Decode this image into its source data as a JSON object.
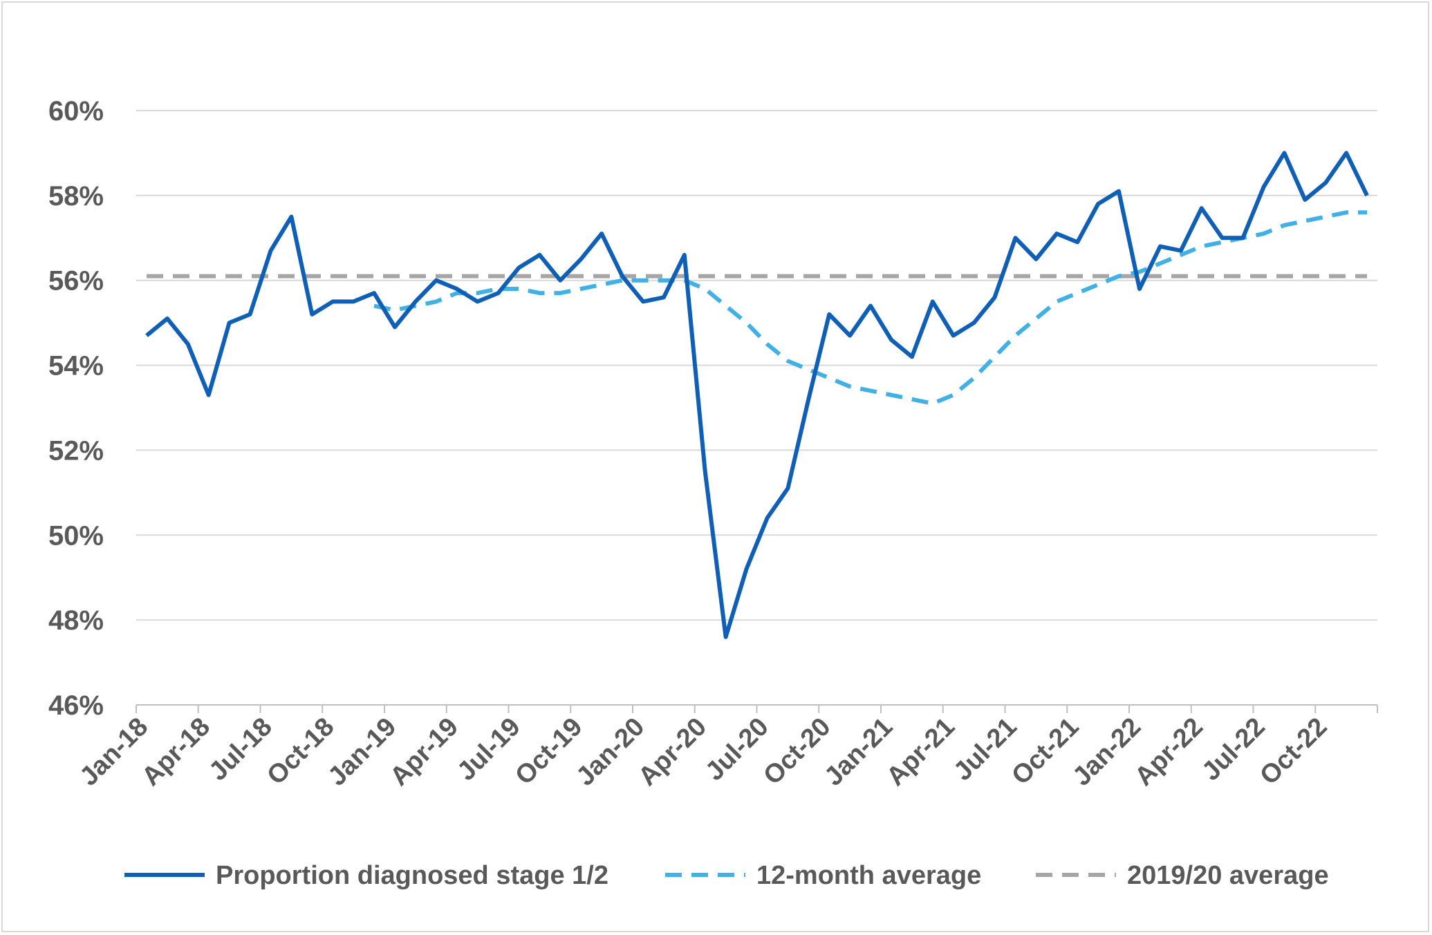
{
  "chart_data": {
    "type": "line",
    "title": "",
    "xlabel": "",
    "ylabel": "",
    "ylim": [
      0.46,
      0.6
    ],
    "yticks": [
      "46%",
      "48%",
      "50%",
      "52%",
      "54%",
      "56%",
      "58%",
      "60%"
    ],
    "ytick_values": [
      0.46,
      0.48,
      0.5,
      0.52,
      0.54,
      0.56,
      0.58,
      0.6
    ],
    "xtick_labels": [
      "Jan-18",
      "Apr-18",
      "Jul-18",
      "Oct-18",
      "Jan-19",
      "Apr-19",
      "Jul-19",
      "Oct-19",
      "Jan-20",
      "Apr-20",
      "Jul-20",
      "Oct-20",
      "Jan-21",
      "Apr-21",
      "Jul-21",
      "Oct-21",
      "Jan-22",
      "Apr-22",
      "Jul-22",
      "Oct-22"
    ],
    "x": [
      "Jan-18",
      "Feb-18",
      "Mar-18",
      "Apr-18",
      "May-18",
      "Jun-18",
      "Jul-18",
      "Aug-18",
      "Sep-18",
      "Oct-18",
      "Nov-18",
      "Dec-18",
      "Jan-19",
      "Feb-19",
      "Mar-19",
      "Apr-19",
      "May-19",
      "Jun-19",
      "Jul-19",
      "Aug-19",
      "Sep-19",
      "Oct-19",
      "Nov-19",
      "Dec-19",
      "Jan-20",
      "Feb-20",
      "Mar-20",
      "Apr-20",
      "May-20",
      "Jun-20",
      "Jul-20",
      "Aug-20",
      "Sep-20",
      "Oct-20",
      "Nov-20",
      "Dec-20",
      "Jan-21",
      "Feb-21",
      "Mar-21",
      "Apr-21",
      "May-21",
      "Jun-21",
      "Jul-21",
      "Aug-21",
      "Sep-21",
      "Oct-21",
      "Nov-21",
      "Dec-21",
      "Jan-22",
      "Feb-22",
      "Mar-22",
      "Apr-22",
      "May-22",
      "Jun-22",
      "Jul-22",
      "Aug-22",
      "Sep-22",
      "Oct-22",
      "Nov-22",
      "Dec-22"
    ],
    "series": [
      {
        "name": "Proportion diagnosed stage 1/2",
        "style": "solid",
        "color": "#0e5fb5",
        "values": [
          0.547,
          0.551,
          0.545,
          0.533,
          0.55,
          0.552,
          0.567,
          0.575,
          0.552,
          0.555,
          0.555,
          0.557,
          0.549,
          0.555,
          0.56,
          0.558,
          0.555,
          0.557,
          0.563,
          0.566,
          0.56,
          0.565,
          0.571,
          0.561,
          0.555,
          0.556,
          0.566,
          0.515,
          0.476,
          0.492,
          0.504,
          0.511,
          0.532,
          0.552,
          0.547,
          0.554,
          0.546,
          0.542,
          0.555,
          0.547,
          0.55,
          0.556,
          0.57,
          0.565,
          0.571,
          0.569,
          0.578,
          0.581,
          0.558,
          0.568,
          0.567,
          0.577,
          0.57,
          0.57,
          0.582,
          0.59,
          0.579,
          0.583,
          0.59,
          0.58
        ]
      },
      {
        "name": "12-month average",
        "style": "dashed",
        "color": "#41b0e4",
        "values": [
          null,
          null,
          null,
          null,
          null,
          null,
          null,
          null,
          null,
          null,
          null,
          0.554,
          0.553,
          0.554,
          0.555,
          0.557,
          0.557,
          0.558,
          0.558,
          0.557,
          0.557,
          0.558,
          0.559,
          0.56,
          0.56,
          0.56,
          0.56,
          0.558,
          0.554,
          0.55,
          0.545,
          0.541,
          0.539,
          0.537,
          0.535,
          0.534,
          0.533,
          0.532,
          0.531,
          0.533,
          0.537,
          0.542,
          0.547,
          0.551,
          0.555,
          0.557,
          0.559,
          0.561,
          0.562,
          0.564,
          0.566,
          0.568,
          0.569,
          0.57,
          0.571,
          0.573,
          0.574,
          0.575,
          0.576,
          0.576
        ]
      },
      {
        "name": "2019/20 average",
        "style": "dashed",
        "color": "#a6a6a6",
        "values": [
          0.561,
          0.561,
          0.561,
          0.561,
          0.561,
          0.561,
          0.561,
          0.561,
          0.561,
          0.561,
          0.561,
          0.561,
          0.561,
          0.561,
          0.561,
          0.561,
          0.561,
          0.561,
          0.561,
          0.561,
          0.561,
          0.561,
          0.561,
          0.561,
          0.561,
          0.561,
          0.561,
          0.561,
          0.561,
          0.561,
          0.561,
          0.561,
          0.561,
          0.561,
          0.561,
          0.561,
          0.561,
          0.561,
          0.561,
          0.561,
          0.561,
          0.561,
          0.561,
          0.561,
          0.561,
          0.561,
          0.561,
          0.561,
          0.561,
          0.561,
          0.561,
          0.561,
          0.561,
          0.561,
          0.561,
          0.561,
          0.561,
          0.561,
          0.561,
          0.561
        ]
      }
    ],
    "grid": true,
    "legend_position": "bottom",
    "gridline_color": "#d9d9d9",
    "axis_color": "#bfbfbf"
  }
}
